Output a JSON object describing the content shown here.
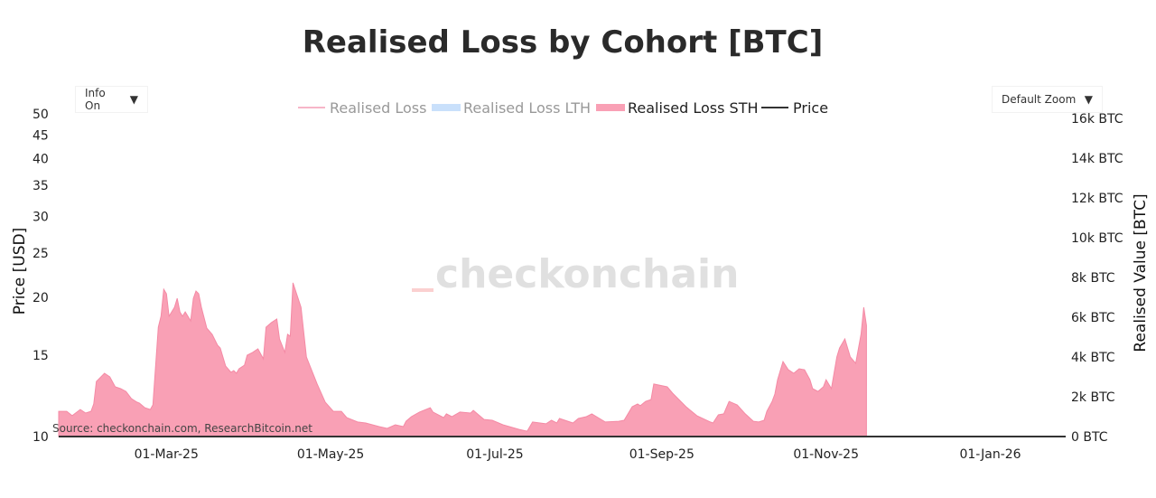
{
  "title": "Realised Loss by Cohort [BTC]",
  "controls": {
    "info_label": "Info On",
    "zoom_label": "Default Zoom",
    "caret": "▼"
  },
  "watermark": "checkonchain",
  "source": "Source: checkonchain.com, ResearchBitcoin.net",
  "colors": {
    "realised_loss": "#f7b6c8",
    "lth": "#c9e0fb",
    "sth": "#f9a0b5",
    "sth_line": "#f48aa5",
    "price": "#333333"
  },
  "chart_data": {
    "type": "area",
    "legend": [
      {
        "name": "Realised Loss",
        "visible": false
      },
      {
        "name": "Realised Loss LTH",
        "visible": false
      },
      {
        "name": "Realised Loss STH",
        "visible": true
      },
      {
        "name": "Price",
        "visible": true
      }
    ],
    "legend_position": "top-center",
    "ylabel_left": "Price [USD]",
    "ylabel_right": "Realised Value [BTC]",
    "left_axis": {
      "scale": "log",
      "range": [
        10,
        50
      ],
      "ticks": [
        "10",
        "15",
        "20",
        "25",
        "30",
        "35",
        "40",
        "45",
        "50"
      ]
    },
    "right_axis": {
      "range": [
        0,
        16000
      ],
      "ticks": [
        "0 BTC",
        "2k BTC",
        "4k BTC",
        "6k BTC",
        "8k BTC",
        "10k BTC",
        "12k BTC",
        "14k BTC",
        "16k BTC"
      ]
    },
    "xlim": [
      "2025-01-20",
      "2026-01-29"
    ],
    "x_ticks": [
      {
        "date": "2025-03-01",
        "label": "01-Mar-25"
      },
      {
        "date": "2025-05-01",
        "label": "01-May-25"
      },
      {
        "date": "2025-07-01",
        "label": "01-Jul-25"
      },
      {
        "date": "2025-09-01",
        "label": "01-Sep-25"
      },
      {
        "date": "2025-11-01",
        "label": "01-Nov-25"
      },
      {
        "date": "2026-01-01",
        "label": "01-Jan-26"
      }
    ],
    "series": [
      {
        "name": "Realised Loss STH",
        "x": [
          "2025-01-20",
          "2025-01-23",
          "2025-01-25",
          "2025-01-28",
          "2025-01-30",
          "2025-02-01",
          "2025-02-02",
          "2025-02-03",
          "2025-02-06",
          "2025-02-08",
          "2025-02-10",
          "2025-02-12",
          "2025-02-14",
          "2025-02-16",
          "2025-02-18",
          "2025-02-19",
          "2025-02-21",
          "2025-02-23",
          "2025-02-24",
          "2025-02-26",
          "2025-02-27",
          "2025-02-28",
          "2025-03-01",
          "2025-03-02",
          "2025-03-04",
          "2025-03-05",
          "2025-03-06",
          "2025-03-07",
          "2025-03-08",
          "2025-03-10",
          "2025-03-11",
          "2025-03-12",
          "2025-03-13",
          "2025-03-14",
          "2025-03-16",
          "2025-03-18",
          "2025-03-20",
          "2025-03-21",
          "2025-03-23",
          "2025-03-25",
          "2025-03-26",
          "2025-03-27",
          "2025-03-28",
          "2025-03-30",
          "2025-03-31",
          "2025-04-02",
          "2025-04-04",
          "2025-04-06",
          "2025-04-07",
          "2025-04-09",
          "2025-04-11",
          "2025-04-12",
          "2025-04-14",
          "2025-04-15",
          "2025-04-16",
          "2025-04-17",
          "2025-04-20",
          "2025-04-22",
          "2025-04-26",
          "2025-04-29",
          "2025-05-02",
          "2025-05-05",
          "2025-05-07",
          "2025-05-11",
          "2025-05-14",
          "2025-05-19",
          "2025-05-22",
          "2025-05-25",
          "2025-05-28",
          "2025-05-29",
          "2025-05-31",
          "2025-06-03",
          "2025-06-07",
          "2025-06-08",
          "2025-06-12",
          "2025-06-13",
          "2025-06-15",
          "2025-06-18",
          "2025-06-22",
          "2025-06-23",
          "2025-06-27",
          "2025-06-30",
          "2025-07-04",
          "2025-07-10",
          "2025-07-13",
          "2025-07-15",
          "2025-07-20",
          "2025-07-22",
          "2025-07-24",
          "2025-07-25",
          "2025-07-30",
          "2025-08-01",
          "2025-08-04",
          "2025-08-06",
          "2025-08-11",
          "2025-08-16",
          "2025-08-18",
          "2025-08-21",
          "2025-08-23",
          "2025-08-24",
          "2025-08-26",
          "2025-08-28",
          "2025-08-29",
          "2025-09-03",
          "2025-09-05",
          "2025-09-10",
          "2025-09-14",
          "2025-09-19",
          "2025-09-20",
          "2025-09-22",
          "2025-09-24",
          "2025-09-26",
          "2025-09-29",
          "2025-10-02",
          "2025-10-05",
          "2025-10-07",
          "2025-10-09",
          "2025-10-10",
          "2025-10-12",
          "2025-10-13",
          "2025-10-14",
          "2025-10-16",
          "2025-10-18",
          "2025-10-20",
          "2025-10-22",
          "2025-10-24",
          "2025-10-26",
          "2025-10-27",
          "2025-10-29",
          "2025-10-31",
          "2025-11-01",
          "2025-11-03",
          "2025-11-05",
          "2025-11-06",
          "2025-11-08",
          "2025-11-10",
          "2025-11-12",
          "2025-11-14",
          "2025-11-15",
          "2025-11-16"
        ],
        "values": [
          1270,
          1270,
          1050,
          1360,
          1180,
          1270,
          1640,
          2770,
          3180,
          3000,
          2500,
          2410,
          2270,
          1910,
          1730,
          1680,
          1450,
          1360,
          1590,
          5500,
          6050,
          7410,
          7180,
          6050,
          6500,
          6950,
          6270,
          6050,
          6270,
          5820,
          6950,
          7320,
          7180,
          6500,
          5450,
          5140,
          4590,
          4450,
          3550,
          3230,
          3320,
          3180,
          3410,
          3590,
          4090,
          4230,
          4410,
          3910,
          5500,
          5730,
          5910,
          4910,
          4230,
          5140,
          5050,
          7730,
          6500,
          4000,
          2640,
          1730,
          1270,
          1270,
          950,
          730,
          680,
          500,
          410,
          590,
          500,
          770,
          1000,
          1230,
          1450,
          1230,
          950,
          1140,
          1000,
          1230,
          1180,
          1320,
          860,
          820,
          590,
          360,
          270,
          730,
          640,
          820,
          680,
          910,
          680,
          910,
          1000,
          1140,
          730,
          770,
          820,
          1500,
          1640,
          1550,
          1770,
          1860,
          2640,
          2500,
          2180,
          1500,
          1050,
          730,
          680,
          1090,
          1140,
          1770,
          1590,
          1140,
          770,
          730,
          820,
          1270,
          1770,
          2140,
          2860,
          3770,
          3360,
          3180,
          3410,
          3360,
          2860,
          2410,
          2270,
          2500,
          2860,
          2410,
          4000,
          4450,
          4910,
          4000,
          3680,
          5140,
          6500,
          5590
        ]
      }
    ]
  }
}
